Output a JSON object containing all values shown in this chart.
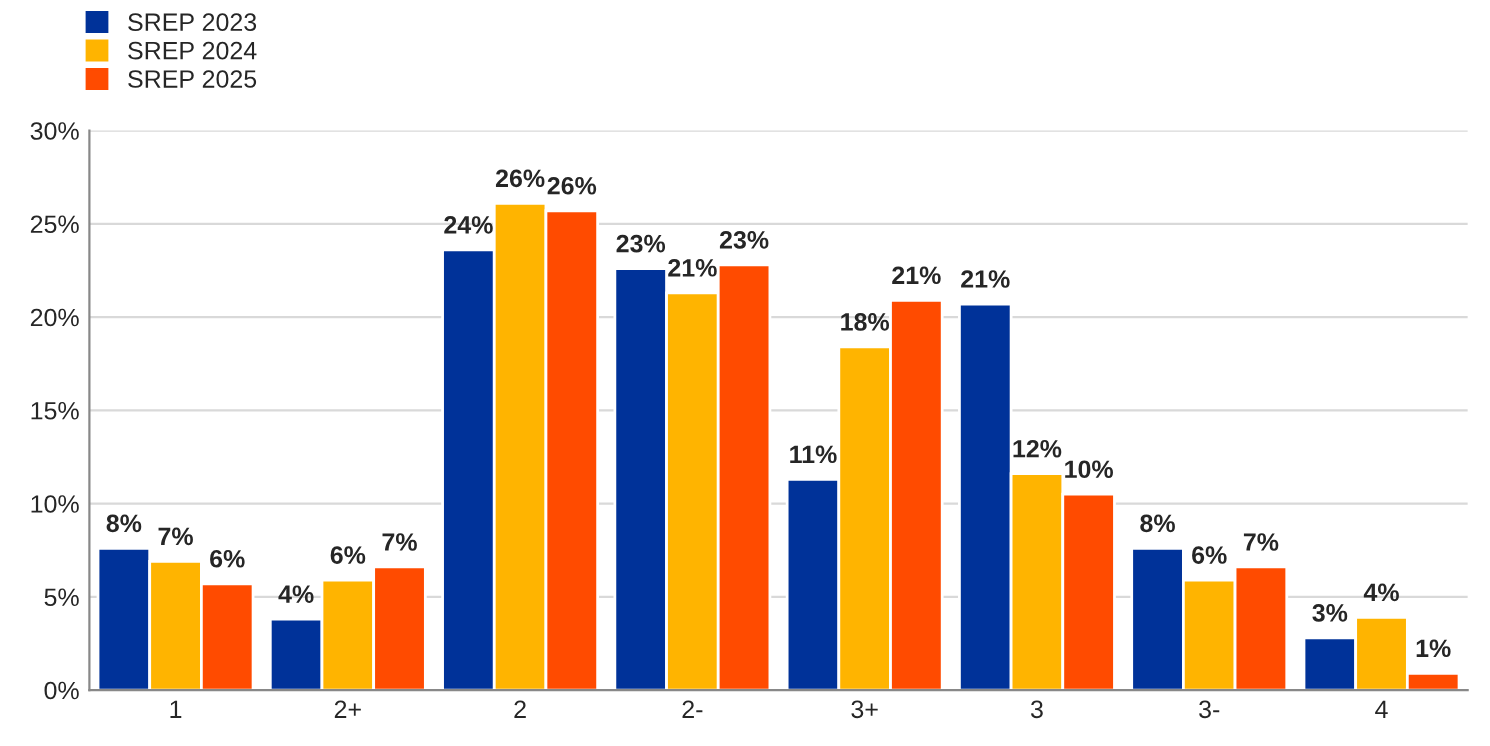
{
  "chart_data": {
    "type": "bar",
    "categories": [
      "1",
      "2+",
      "2",
      "2-",
      "3+",
      "3",
      "3-",
      "4"
    ],
    "series": [
      {
        "name": "SREP 2023",
        "color": "#003299",
        "values": [
          7.6,
          3.8,
          23.6,
          22.6,
          11.3,
          20.7,
          7.6,
          2.8
        ],
        "value_labels": [
          "8%",
          "4%",
          "24%",
          "23%",
          "11%",
          "21%",
          "8%",
          "3%"
        ]
      },
      {
        "name": "SREP 2024",
        "color": "#ffb400",
        "values": [
          6.9,
          5.9,
          26.1,
          21.3,
          18.4,
          11.6,
          5.9,
          3.9
        ],
        "value_labels": [
          "7%",
          "6%",
          "26%",
          "21%",
          "18%",
          "12%",
          "6%",
          "4%"
        ]
      },
      {
        "name": "SREP 2025",
        "color": "#ff4b00",
        "values": [
          5.7,
          6.6,
          25.7,
          22.8,
          20.9,
          10.5,
          6.6,
          0.9
        ],
        "value_labels": [
          "6%",
          "7%",
          "26%",
          "23%",
          "21%",
          "10%",
          "7%",
          "1%"
        ]
      }
    ],
    "ylim": [
      0,
      30
    ],
    "yticks": [
      {
        "value": 0,
        "label": "0%"
      },
      {
        "value": 5,
        "label": "5%"
      },
      {
        "value": 10,
        "label": "10%"
      },
      {
        "value": 15,
        "label": "15%"
      },
      {
        "value": 20,
        "label": "20%"
      },
      {
        "value": 25,
        "label": "25%"
      },
      {
        "value": 30,
        "label": "30%"
      }
    ],
    "grid": "y",
    "legend": "top left"
  }
}
